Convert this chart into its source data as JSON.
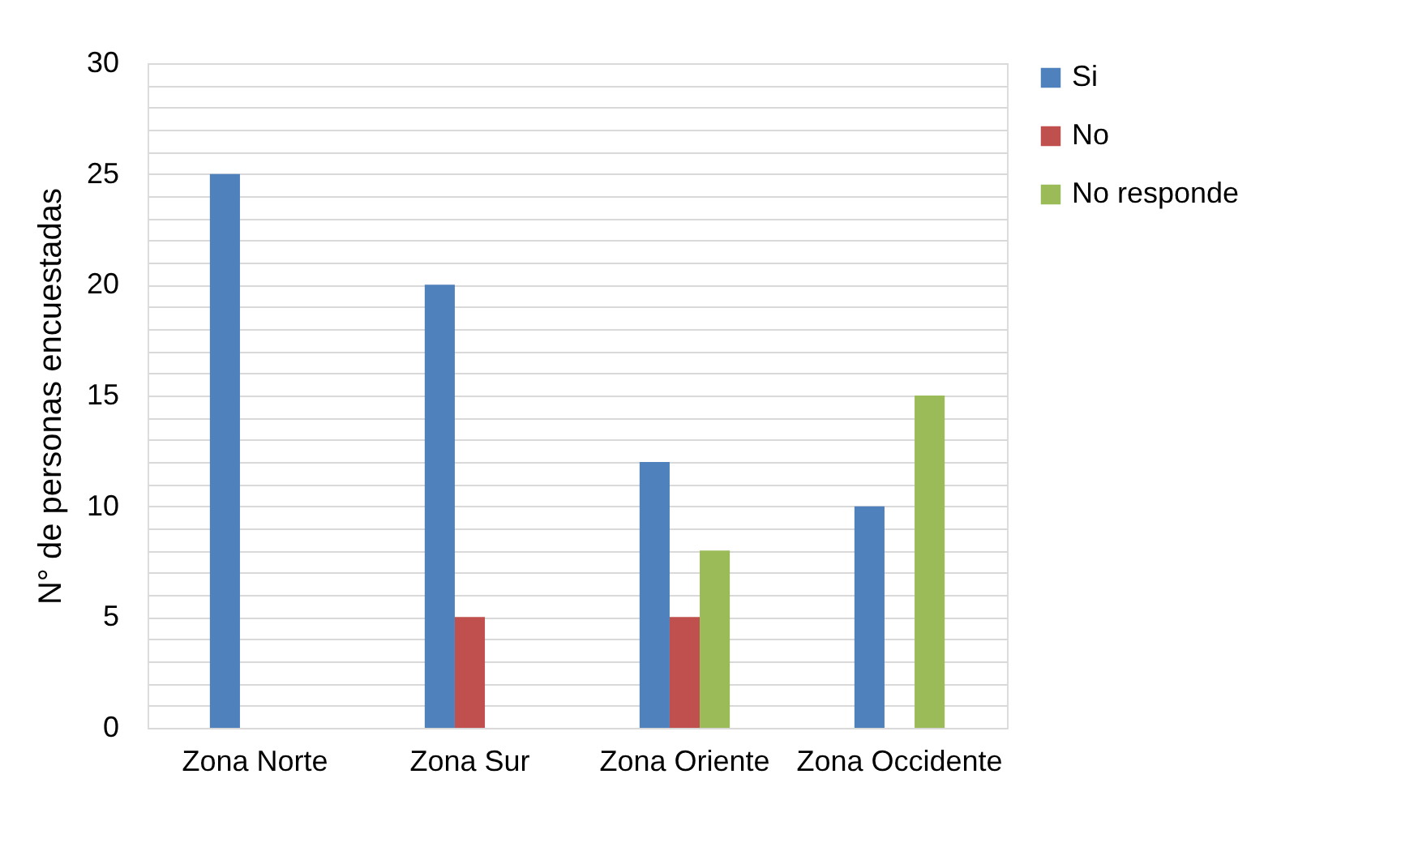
{
  "chart_data": {
    "type": "bar",
    "ylabel": "N° de personas encuestadas",
    "categories": [
      "Zona Norte",
      "Zona Sur",
      "Zona Oriente",
      "Zona Occidente"
    ],
    "series": [
      {
        "name": "Si",
        "color": "#4f81bd",
        "values": [
          25,
          20,
          12,
          10
        ]
      },
      {
        "name": "No",
        "color": "#c0504d",
        "values": [
          0,
          5,
          5,
          0
        ]
      },
      {
        "name": "No responde",
        "color": "#9bbb59",
        "values": [
          0,
          0,
          8,
          15
        ]
      }
    ],
    "ylim": [
      0,
      30
    ],
    "yticks": [
      0,
      {
        "value": 1,
        "label": null
      },
      {
        "value": 2,
        "label": null
      },
      {
        "value": 3,
        "label": null
      },
      {
        "value": 4,
        "label": null
      },
      5,
      {
        "value": 6,
        "label": null
      },
      {
        "value": 7,
        "label": null
      },
      {
        "value": 8,
        "label": null
      },
      {
        "value": 9,
        "label": null
      },
      10,
      {
        "value": 11,
        "label": null
      },
      {
        "value": 12,
        "label": null
      },
      {
        "value": 13,
        "label": null
      },
      {
        "value": 14,
        "label": null
      },
      15,
      {
        "value": 16,
        "label": null
      },
      {
        "value": 17,
        "label": null
      },
      {
        "value": 18,
        "label": null
      },
      {
        "value": 19,
        "label": null
      },
      20,
      {
        "value": 21,
        "label": null
      },
      {
        "value": 22,
        "label": null
      },
      {
        "value": 23,
        "label": null
      },
      {
        "value": 24,
        "label": null
      },
      25,
      {
        "value": 26,
        "label": null
      },
      {
        "value": 27,
        "label": null
      },
      {
        "value": 28,
        "label": null
      },
      {
        "value": 29,
        "label": null
      },
      30
    ],
    "grid": "y",
    "legend": "right"
  }
}
